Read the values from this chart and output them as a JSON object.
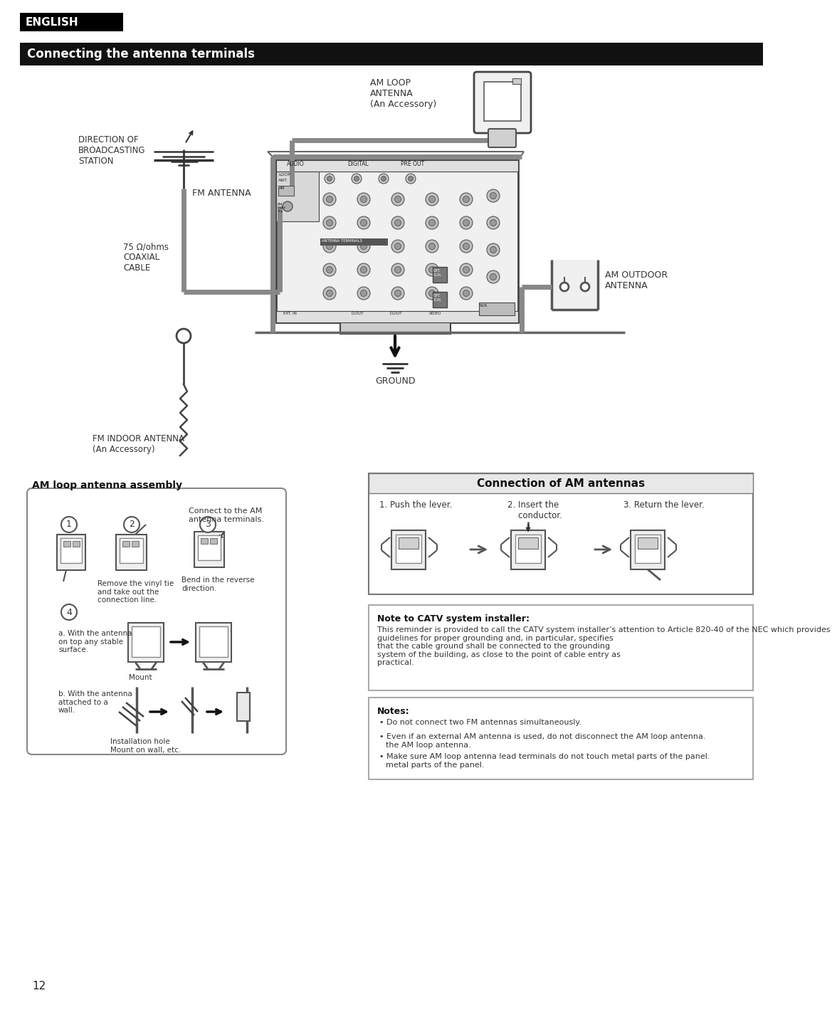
{
  "page_bg": "#ffffff",
  "header_text": "ENGLISH",
  "section_text": "Connecting the antenna terminals",
  "page_number": "12",
  "subsection1_title": "AM loop antenna assembly",
  "subsection2_title": "Connection of AM antennas",
  "note_catv_title": "Note to CATV system installer:",
  "note_catv_body": "This reminder is provided to call the CATV system installer’s attention to Article 820-40 of the NEC which provides\nguidelines for proper grounding and, in particular, specifies\nthat the cable ground shall be connected to the grounding\nsystem of the building, as close to the point of cable entry as\npractical.",
  "notes_title": "Notes:",
  "notes_line1": "Do not connect two FM antennas simultaneously.",
  "notes_line2": "Even if an external AM antenna is used, do not disconnect the AM loop antenna.",
  "notes_line3": "Make sure AM loop antenna lead terminals do not touch metal parts of the panel.",
  "label_fm_antenna": "FM ANTENNA",
  "label_direction": "DIRECTION OF\nBROADCASTING\nSTATION",
  "label_coaxial": "75 Ω/ohms\nCOAXIAL\nCABLE",
  "label_fm_indoor": "FM INDOOR ANTENNA\n(An Accessory)",
  "label_am_loop": "AM LOOP\nANTENNA\n(An Accessory)",
  "label_am_outdoor": "AM OUTDOOR\nANTENNA",
  "label_ground": "GROUND",
  "am_step1": "1. Push the lever.",
  "am_step2": "2. Insert the\n    conductor.",
  "am_step3": "3. Return the lever.",
  "asm_connect": "Connect to the AM\nantenna terminals.",
  "asm_remove": "Remove the vinyl tie\nand take out the\nconnection line.",
  "asm_bend": "Bend in the reverse\ndirection.",
  "asm_a": "a. With the antenna\non top any stable\nsurface.",
  "asm_mount": "Mount",
  "asm_b": "b. With the antenna\nattached to a\nwall.",
  "asm_install": "Installation hole\nMount on wall, etc."
}
